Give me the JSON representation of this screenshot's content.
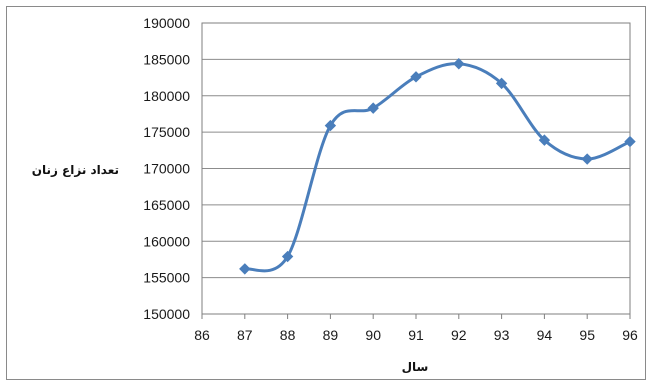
{
  "chart_data": {
    "type": "line",
    "smooth": true,
    "title": "",
    "xlabel": "سال",
    "ylabel": "تعداد نزاع زنان",
    "x": [
      87,
      88,
      89,
      90,
      91,
      92,
      93,
      94,
      95,
      96
    ],
    "series": [
      {
        "values": [
          156200,
          157900,
          175900,
          178300,
          182600,
          184400,
          181700,
          173900,
          171300,
          173700
        ]
      }
    ],
    "xlim": [
      86,
      96
    ],
    "ylim": [
      150000,
      190000
    ],
    "xticks": [
      "86",
      "87",
      "88",
      "89",
      "90",
      "91",
      "92",
      "93",
      "94",
      "95",
      "96"
    ],
    "yticks": [
      "150000",
      "155000",
      "160000",
      "165000",
      "170000",
      "175000",
      "180000",
      "185000",
      "190000"
    ],
    "grid": true,
    "line_color": "#4a7ebb",
    "marker": "diamond"
  }
}
